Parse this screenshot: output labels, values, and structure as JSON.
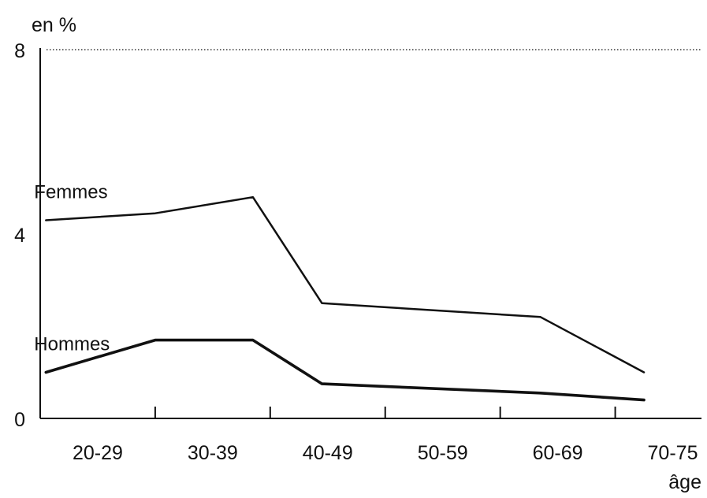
{
  "chart_data": {
    "type": "line",
    "ylabel": "en %",
    "xlabel": "âge",
    "categories": [
      "20-29",
      "30-39",
      "40-49",
      "50-59",
      "60-69",
      "70-75"
    ],
    "x_positions": [
      25,
      35,
      45,
      55,
      65,
      75
    ],
    "yticks": [
      0,
      4,
      8
    ],
    "ylim": [
      0,
      8
    ],
    "xlim": [
      20,
      77.5
    ],
    "grid": false,
    "top_reference_line": "dotted",
    "series": [
      {
        "name": "Femmes",
        "x": [
          20.5,
          30,
          38.5,
          44.5,
          63.5,
          72.5
        ],
        "values": [
          4.3,
          4.45,
          4.8,
          2.5,
          2.2,
          1.0
        ]
      },
      {
        "name": "Hommes",
        "x": [
          20.5,
          30,
          38.5,
          44.5,
          63.5,
          72.5
        ],
        "values": [
          1.0,
          1.7,
          1.7,
          0.75,
          0.55,
          0.4
        ]
      }
    ]
  }
}
